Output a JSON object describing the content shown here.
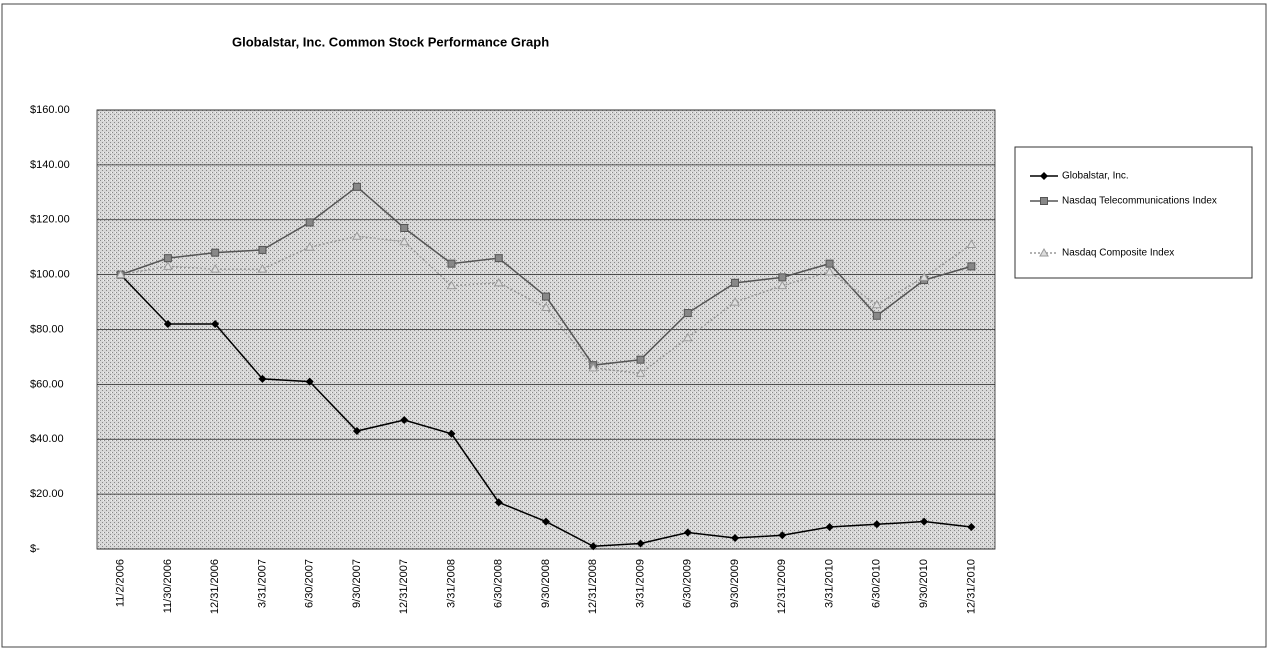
{
  "chart_data": {
    "type": "line",
    "title": "Globalstar, Inc. Common Stock Performance Graph",
    "categories": [
      "11/2/2006",
      "11/30/2006",
      "12/31/2006",
      "3/31/2007",
      "6/30/2007",
      "9/30/2007",
      "12/31/2007",
      "3/31/2008",
      "6/30/2008",
      "9/30/2008",
      "12/31/2008",
      "3/31/2009",
      "6/30/2009",
      "9/30/2009",
      "12/31/2009",
      "3/31/2010",
      "6/30/2010",
      "9/30/2010",
      "12/31/2010"
    ],
    "series": [
      {
        "name": "Globalstar, Inc.",
        "color": "#000000",
        "marker": "diamond",
        "dash": "solid",
        "values": [
          100,
          82,
          82,
          62,
          61,
          43,
          47,
          42,
          17,
          10,
          1,
          2,
          6,
          4,
          5,
          8,
          9,
          10,
          8
        ]
      },
      {
        "name": "Nasdaq Telecommunications Index",
        "color": "#555555",
        "marker": "square",
        "dash": "solid",
        "values": [
          100,
          106,
          108,
          109,
          119,
          132,
          117,
          104,
          106,
          92,
          67,
          69,
          86,
          97,
          99,
          104,
          85,
          98,
          103
        ]
      },
      {
        "name": "Nasdaq Composite Index",
        "color": "#999999",
        "marker": "triangle",
        "dash": "dotted",
        "values": [
          100,
          103,
          102,
          102,
          110,
          114,
          112,
          96,
          97,
          88,
          66,
          64,
          77,
          90,
          96,
          101,
          89,
          99,
          111
        ]
      }
    ],
    "ylim": [
      0,
      160
    ],
    "yticks": [
      {
        "value": 0,
        "label": "$-"
      },
      {
        "value": 20,
        "label": "$20.00"
      },
      {
        "value": 40,
        "label": "$40.00"
      },
      {
        "value": 60,
        "label": "$60.00"
      },
      {
        "value": 80,
        "label": "$80.00"
      },
      {
        "value": 100,
        "label": "$100.00"
      },
      {
        "value": 120,
        "label": "$120.00"
      },
      {
        "value": 140,
        "label": "$140.00"
      },
      {
        "value": 160,
        "label": "$160.00"
      }
    ],
    "grid": true,
    "legend": "right"
  }
}
